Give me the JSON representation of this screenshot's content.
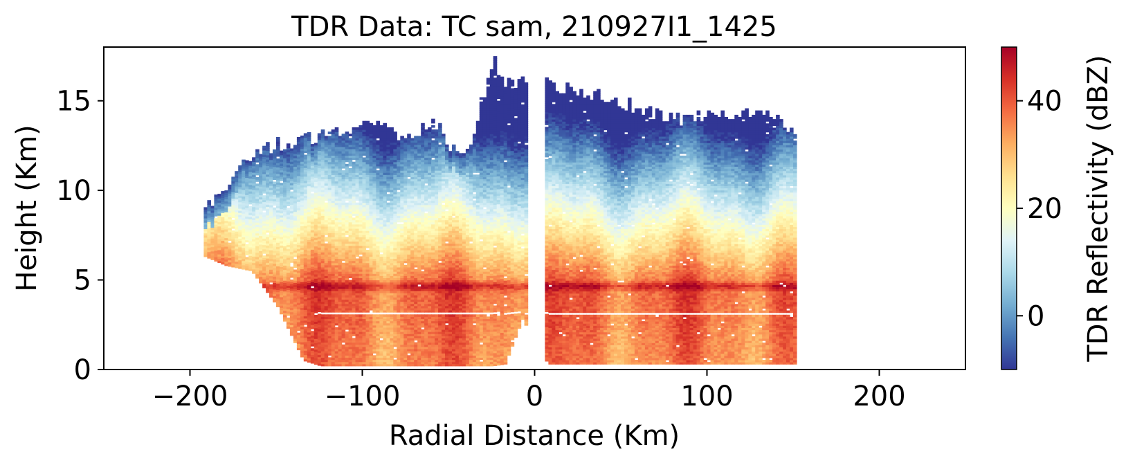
{
  "chart_data": {
    "type": "heatmap",
    "title": "TDR Data: TC sam, 210927I1_1425",
    "xlabel": "Radial Distance (Km)",
    "ylabel": "Height (Km)",
    "xlim": [
      -250,
      250
    ],
    "ylim": [
      0,
      18
    ],
    "xticks": [
      -200,
      -100,
      0,
      100,
      200
    ],
    "xtick_labels": [
      "−200",
      "−100",
      "0",
      "100",
      "200"
    ],
    "yticks": [
      0,
      5,
      10,
      15
    ],
    "ytick_labels": [
      "0",
      "5",
      "10",
      "15"
    ],
    "colorbar": {
      "label": "TDR Reflectivity (dBZ)",
      "range": [
        -10,
        50
      ],
      "ticks": [
        0,
        20,
        40
      ],
      "tick_labels": [
        "0",
        "20",
        "40"
      ],
      "colormap": "RdYlBu_r",
      "colors": [
        "#313695",
        "#4575b4",
        "#74add1",
        "#abd9e9",
        "#e0f3f8",
        "#ffffbf",
        "#fee090",
        "#fdae61",
        "#f46d43",
        "#d73027",
        "#a50026"
      ]
    },
    "echo_extent": {
      "x_range": [
        -192,
        152
      ],
      "eye_gap_x": [
        -6,
        6
      ],
      "radial_profile": [
        {
          "x": -192,
          "top": 9.0,
          "base": 6.3
        },
        {
          "x": -180,
          "top": 10.2,
          "base": 5.8
        },
        {
          "x": -165,
          "top": 12.0,
          "base": 5.5
        },
        {
          "x": -150,
          "top": 12.5,
          "base": 3.5
        },
        {
          "x": -135,
          "top": 12.8,
          "base": 0.5
        },
        {
          "x": -125,
          "top": 13.0,
          "base": 0.2
        },
        {
          "x": -110,
          "top": 13.2,
          "base": 0.2
        },
        {
          "x": -95,
          "top": 13.6,
          "base": 0.2
        },
        {
          "x": -80,
          "top": 13.0,
          "base": 0.2
        },
        {
          "x": -70,
          "top": 13.2,
          "base": 0.2
        },
        {
          "x": -60,
          "top": 13.8,
          "base": 0.2
        },
        {
          "x": -50,
          "top": 12.5,
          "base": 0.2
        },
        {
          "x": -40,
          "top": 12.0,
          "base": 0.2
        },
        {
          "x": -30,
          "top": 15.5,
          "base": 0.2
        },
        {
          "x": -25,
          "top": 17.2,
          "base": 0.2
        },
        {
          "x": -18,
          "top": 16.0,
          "base": 0.3
        },
        {
          "x": -8,
          "top": 16.0,
          "base": 2.8
        },
        {
          "x": 7,
          "top": 15.8,
          "base": 0.3
        },
        {
          "x": 25,
          "top": 15.5,
          "base": 0.3
        },
        {
          "x": 45,
          "top": 15.0,
          "base": 0.3
        },
        {
          "x": 60,
          "top": 14.5,
          "base": 0.3
        },
        {
          "x": 75,
          "top": 14.0,
          "base": 0.3
        },
        {
          "x": 95,
          "top": 14.0,
          "base": 0.3
        },
        {
          "x": 110,
          "top": 14.2,
          "base": 0.3
        },
        {
          "x": 125,
          "top": 14.2,
          "base": 0.3
        },
        {
          "x": 140,
          "top": 14.2,
          "base": 0.3
        },
        {
          "x": 152,
          "top": 13.0,
          "base": 0.3
        }
      ],
      "bright_band_height_km": 4.6,
      "bright_band_peak_dbz": 48,
      "surface_max_dbz": 45,
      "cloud_top_dbz": -8
    }
  }
}
